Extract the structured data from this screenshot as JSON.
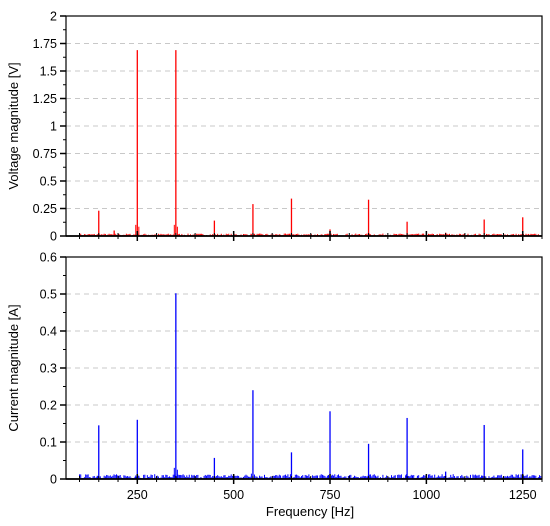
{
  "chart_data": [
    {
      "type": "bar",
      "ylabel": "Voltage magnitude [V]",
      "xlabel": "",
      "xlim": [
        65,
        1300
      ],
      "ylim": [
        0,
        2
      ],
      "yticks": [
        "0",
        "0.25",
        "0.5",
        "0.75",
        "1",
        "1.25",
        "1.5",
        "1.75",
        "2"
      ],
      "xticks": [
        250,
        500,
        750,
        1000,
        1250
      ],
      "grid": "horizontal dashed",
      "color": "#ff0000",
      "series": [
        {
          "x": [
            150,
            190,
            250,
            350,
            450,
            550,
            650,
            750,
            850,
            950,
            1050,
            1150,
            1250
          ],
          "values": [
            0.23,
            0.05,
            1.69,
            1.69,
            0.14,
            0.29,
            0.34,
            0.06,
            0.33,
            0.13,
            0.03,
            0.15,
            0.17
          ]
        }
      ]
    },
    {
      "type": "bar",
      "ylabel": "Current magnitude [A]",
      "xlabel": "Frequency [Hz]",
      "xlim": [
        65,
        1300
      ],
      "ylim": [
        0,
        0.6
      ],
      "yticks": [
        "0",
        "0.1",
        "0.2",
        "0.3",
        "0.4",
        "0.5",
        "0.6"
      ],
      "xticks": [
        "250",
        "500",
        "750",
        "1000",
        "1250"
      ],
      "grid": "horizontal dashed",
      "color": "#0000ff",
      "series": [
        {
          "x": [
            150,
            250,
            350,
            450,
            550,
            650,
            750,
            850,
            950,
            1050,
            1150,
            1250
          ],
          "values": [
            0.145,
            0.16,
            0.502,
            0.057,
            0.24,
            0.072,
            0.183,
            0.095,
            0.165,
            0.02,
            0.146,
            0.08
          ]
        }
      ]
    }
  ]
}
